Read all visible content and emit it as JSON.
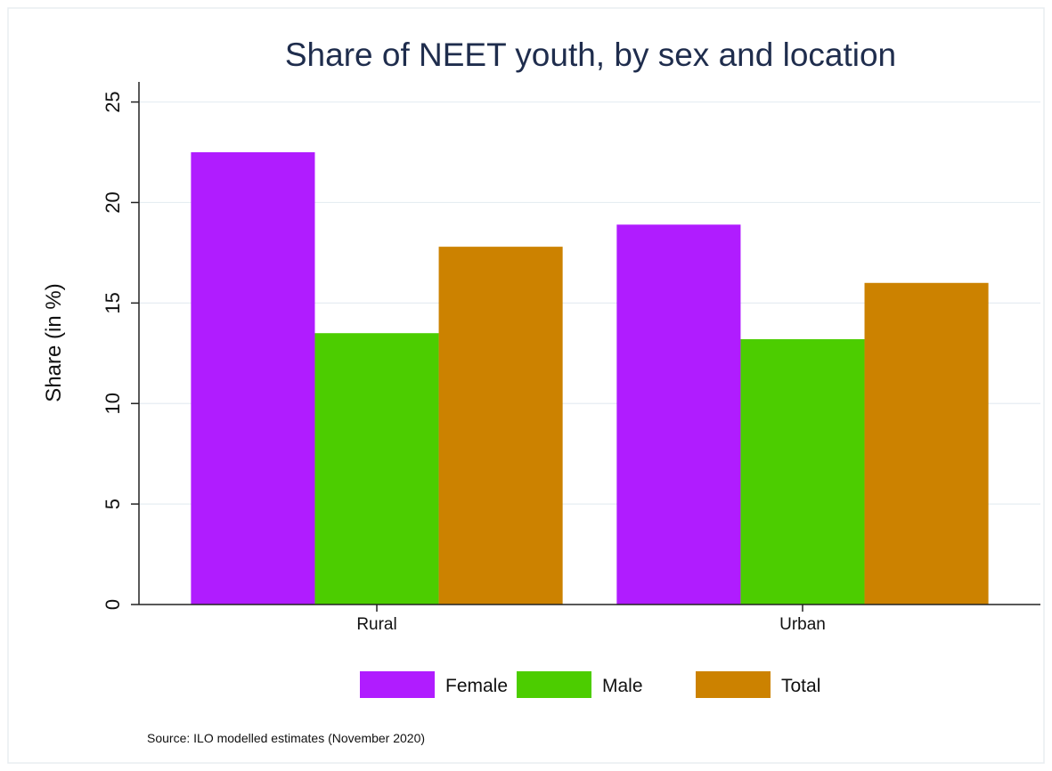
{
  "chart_data": {
    "type": "bar",
    "title": "Share of NEET youth, by sex and location",
    "xlabel": "",
    "ylabel": "Share (in %)",
    "ylim": [
      0,
      26
    ],
    "yticks": [
      0,
      5,
      10,
      15,
      20,
      25
    ],
    "grid": true,
    "legend_position": "bottom",
    "categories": [
      "Rural",
      "Urban"
    ],
    "series": [
      {
        "name": "Female",
        "color": "#b01cff",
        "values": [
          22.5,
          18.9
        ]
      },
      {
        "name": "Male",
        "color": "#4ccd00",
        "values": [
          13.5,
          13.2
        ]
      },
      {
        "name": "Total",
        "color": "#cc8200",
        "values": [
          17.8,
          16.0
        ]
      }
    ],
    "source": "Source: ILO modelled estimates (November 2020)"
  }
}
